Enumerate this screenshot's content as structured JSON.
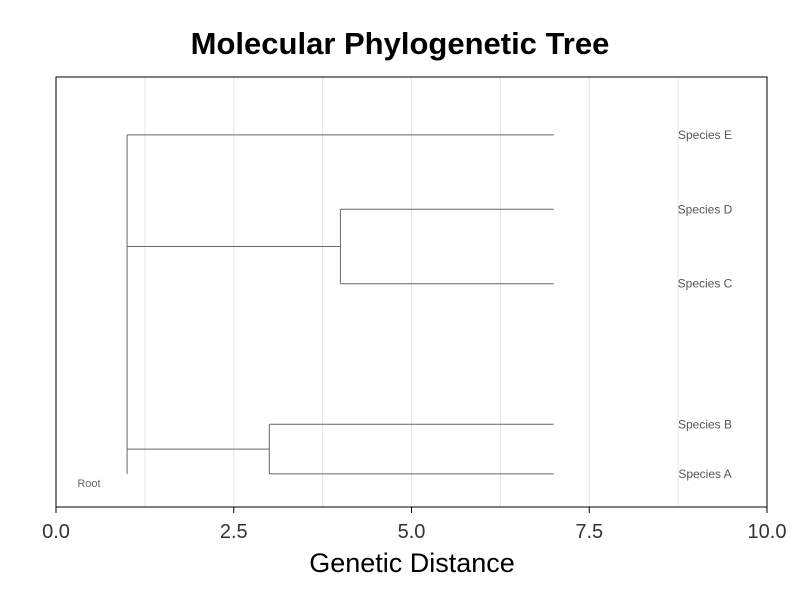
{
  "chart_data": {
    "type": "dendrogram",
    "title": "Molecular Phylogenetic Tree",
    "xlabel": "Genetic Distance",
    "ylabel": "",
    "xlim": [
      0,
      10
    ],
    "x_ticks": [
      0.0,
      2.5,
      5.0,
      7.5,
      10.0
    ],
    "x_tick_labels": [
      "0.0",
      "2.5",
      "5.0",
      "7.5",
      "10.0"
    ],
    "grid": "vertical",
    "root_label": "Root",
    "root_position": 1.0,
    "leaves": [
      {
        "name": "Species E",
        "y": 4.5
      },
      {
        "name": "Species D",
        "y": 3.6
      },
      {
        "name": "Species C",
        "y": 2.7
      },
      {
        "name": "Species B",
        "y": 1.0
      },
      {
        "name": "Species A",
        "y": 0.4
      }
    ],
    "leaf_end": 7.0,
    "nodes": [
      {
        "name": "root",
        "x": 1.0,
        "y_span": [
          0.4,
          4.5
        ],
        "children": [
          "AB",
          "CD",
          "Species E"
        ]
      },
      {
        "name": "CD",
        "x": 4.0,
        "y": 3.15,
        "y_span": [
          2.7,
          3.6
        ],
        "children": [
          "Species C",
          "Species D"
        ]
      },
      {
        "name": "AB",
        "x": 3.0,
        "y": 0.7,
        "y_span": [
          0.4,
          1.0
        ],
        "children": [
          "Species A",
          "Species B"
        ]
      }
    ]
  }
}
